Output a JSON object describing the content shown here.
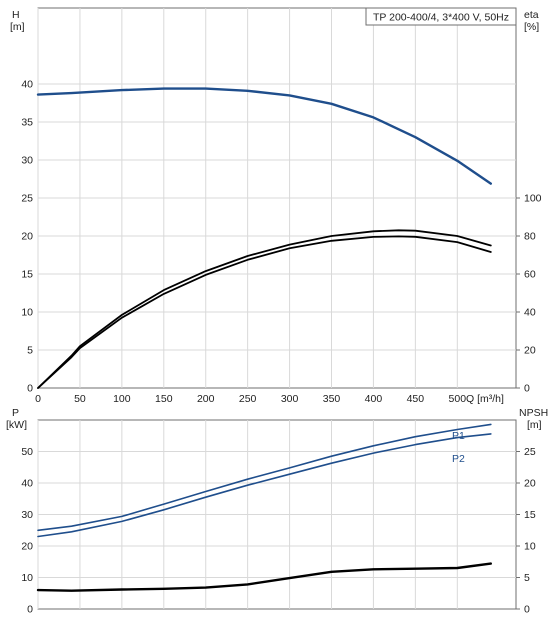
{
  "chart_data": [
    {
      "type": "line",
      "title": "TP 200-400/4, 3*400 V, 50Hz",
      "xlabel": "Q [m³/h]",
      "xlim": [
        0,
        570
      ],
      "x_ticks": [
        0,
        50,
        100,
        150,
        200,
        250,
        300,
        350,
        400,
        450,
        500
      ],
      "y_left": {
        "label_top": "H",
        "label_unit": "[m]",
        "lim": [
          0,
          50
        ],
        "ticks": [
          0,
          5,
          10,
          15,
          20,
          25,
          30,
          35,
          40
        ]
      },
      "y_right": {
        "label_top": "eta",
        "label_unit": "[%]",
        "lim": [
          0,
          200
        ],
        "ticks": [
          0,
          20,
          40,
          60,
          80,
          100
        ]
      },
      "grid": true,
      "series": [
        {
          "axis": "left",
          "color": "#1f4e8c",
          "x": [
            0,
            40,
            100,
            150,
            200,
            250,
            300,
            350,
            400,
            450,
            500,
            540
          ],
          "y": [
            38.6,
            38.8,
            39.2,
            39.4,
            39.4,
            39.1,
            38.5,
            37.4,
            35.6,
            33.0,
            29.9,
            26.9
          ]
        },
        {
          "axis": "right",
          "color": "#000000",
          "x": [
            0,
            40,
            50,
            100,
            150,
            200,
            250,
            300,
            350,
            400,
            430,
            450,
            500,
            540
          ],
          "y": [
            0,
            16.2,
            21,
            37,
            49.5,
            59.5,
            67.5,
            73.5,
            77.5,
            79.5,
            79.8,
            79.6,
            76.8,
            71.6
          ]
        },
        {
          "axis": "right",
          "color": "#000000",
          "x": [
            0,
            40,
            50,
            100,
            150,
            200,
            250,
            300,
            350,
            400,
            430,
            450,
            500,
            540
          ],
          "y": [
            0,
            17,
            22,
            38.5,
            51.5,
            61.5,
            69.5,
            75.5,
            80,
            82.5,
            83,
            82.8,
            80,
            75
          ]
        }
      ]
    },
    {
      "type": "line",
      "xlim": [
        0,
        570
      ],
      "y_left": {
        "label_top": "P",
        "label_unit": "[kW]",
        "lim": [
          0,
          60
        ],
        "ticks": [
          0,
          10,
          20,
          30,
          40,
          50
        ]
      },
      "y_right": {
        "label_top": "NPSH",
        "label_unit": "[m]",
        "lim": [
          0,
          30
        ],
        "ticks": [
          0,
          5,
          10,
          15,
          20,
          25
        ]
      },
      "grid": true,
      "series": [
        {
          "name": "P1",
          "axis": "left",
          "color": "#1f4e8c",
          "x": [
            0,
            40,
            100,
            150,
            200,
            250,
            300,
            350,
            400,
            450,
            500,
            540
          ],
          "y": [
            25,
            26.3,
            29.4,
            33.3,
            37.3,
            41.2,
            44.8,
            48.5,
            51.8,
            54.7,
            57.0,
            58.6
          ]
        },
        {
          "name": "P2",
          "axis": "left",
          "color": "#1f4e8c",
          "x": [
            0,
            40,
            100,
            150,
            200,
            250,
            300,
            350,
            400,
            450,
            500,
            540
          ],
          "y": [
            23,
            24.5,
            27.8,
            31.5,
            35.5,
            39.3,
            42.8,
            46.3,
            49.5,
            52.2,
            54.4,
            55.6
          ]
        },
        {
          "axis": "right",
          "color": "#000000",
          "x": [
            0,
            40,
            100,
            150,
            200,
            250,
            300,
            350,
            400,
            450,
            500,
            540
          ],
          "y": [
            3.0,
            2.9,
            3.1,
            3.2,
            3.4,
            3.9,
            4.9,
            5.9,
            6.3,
            6.4,
            6.5,
            7.2
          ]
        }
      ]
    }
  ]
}
